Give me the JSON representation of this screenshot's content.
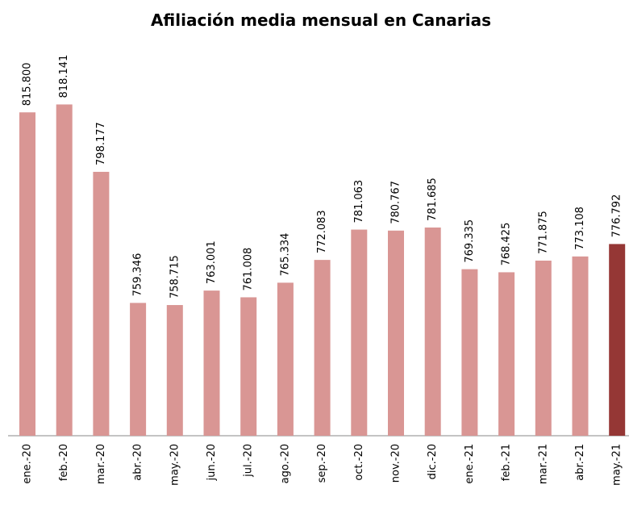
{
  "chart_data": {
    "type": "bar",
    "title": "Afiliación media mensual en Canarias",
    "categories": [
      "ene.-20",
      "feb.-20",
      "mar.-20",
      "abr.-20",
      "may.-20",
      "jun.-20",
      "jul.-20",
      "ago.-20",
      "sep.-20",
      "oct.-20",
      "nov.-20",
      "dic.-20",
      "ene.-21",
      "feb.-21",
      "mar.-21",
      "abr.-21",
      "may.-21"
    ],
    "values": [
      815800,
      818141,
      798177,
      759346,
      758715,
      763001,
      761008,
      765334,
      772083,
      781063,
      780767,
      781685,
      769335,
      768425,
      771875,
      773108,
      776792
    ],
    "value_labels": [
      "815.800",
      "818.141",
      "798.177",
      "759.346",
      "758.715",
      "763.001",
      "761.008",
      "765.334",
      "772.083",
      "781.063",
      "780.767",
      "781.685",
      "769.335",
      "768.425",
      "771.875",
      "773.108",
      "776.792"
    ],
    "colors": [
      "#d99694",
      "#d99694",
      "#d99694",
      "#d99694",
      "#d99694",
      "#d99694",
      "#d99694",
      "#d99694",
      "#d99694",
      "#d99694",
      "#d99694",
      "#d99694",
      "#d99694",
      "#d99694",
      "#d99694",
      "#d99694",
      "#953735"
    ],
    "ylim": [
      720000,
      840000
    ]
  }
}
